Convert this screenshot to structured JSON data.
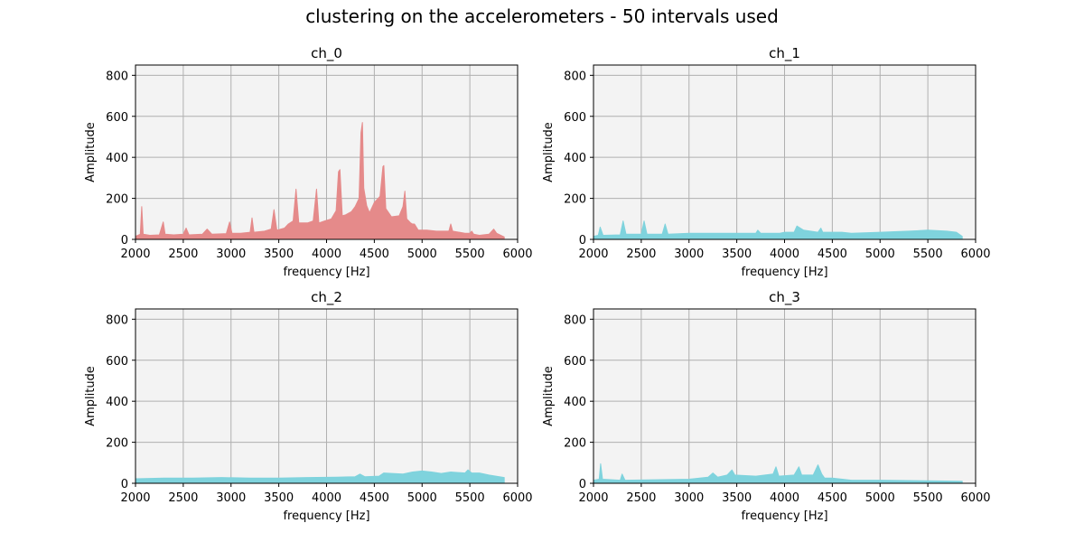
{
  "figure": {
    "suptitle": "clustering on the accelerometers - 50 intervals used"
  },
  "chart_data": [
    {
      "type": "area",
      "title": "ch_0",
      "xlabel": "frequency [Hz]",
      "ylabel": "Amplitude",
      "xlim": [
        2000,
        6000
      ],
      "ylim": [
        0,
        850
      ],
      "xticks": [
        2000,
        2500,
        3000,
        3500,
        4000,
        4500,
        5000,
        5500,
        6000
      ],
      "yticks": [
        0,
        200,
        400,
        600,
        800
      ],
      "grid": true,
      "color": "#e58a8a",
      "series": [
        {
          "x": [
            2000,
            2050,
            2065,
            2080,
            2150,
            2250,
            2290,
            2310,
            2400,
            2500,
            2530,
            2560,
            2700,
            2750,
            2800,
            2950,
            2985,
            3010,
            3100,
            3200,
            3220,
            3240,
            3350,
            3420,
            3450,
            3480,
            3560,
            3600,
            3650,
            3680,
            3710,
            3800,
            3860,
            3895,
            3920,
            3980,
            4050,
            4100,
            4125,
            4140,
            4165,
            4200,
            4260,
            4300,
            4340,
            4360,
            4375,
            4390,
            4420,
            4450,
            4500,
            4560,
            4590,
            4600,
            4620,
            4680,
            4760,
            4800,
            4820,
            4840,
            4880,
            4900,
            4920,
            4960,
            5050,
            5150,
            5200,
            5280,
            5300,
            5320,
            5450,
            5500,
            5520,
            5540,
            5600,
            5700,
            5750,
            5780,
            5860
          ],
          "y": [
            15,
            25,
            160,
            25,
            20,
            22,
            85,
            25,
            22,
            25,
            55,
            22,
            25,
            50,
            25,
            28,
            85,
            30,
            30,
            35,
            105,
            35,
            40,
            50,
            145,
            45,
            55,
            75,
            90,
            245,
            80,
            80,
            90,
            245,
            80,
            90,
            100,
            140,
            330,
            340,
            115,
            120,
            135,
            160,
            200,
            520,
            570,
            250,
            165,
            130,
            180,
            210,
            355,
            360,
            150,
            110,
            115,
            160,
            235,
            100,
            80,
            75,
            75,
            45,
            45,
            40,
            40,
            40,
            75,
            40,
            30,
            30,
            40,
            25,
            20,
            25,
            50,
            30,
            12
          ]
        }
      ]
    },
    {
      "type": "area",
      "title": "ch_1",
      "xlabel": "frequency [Hz]",
      "ylabel": "Amplitude",
      "xlim": [
        2000,
        6000
      ],
      "ylim": [
        0,
        850
      ],
      "xticks": [
        2000,
        2500,
        3000,
        3500,
        4000,
        4500,
        5000,
        5500,
        6000
      ],
      "yticks": [
        0,
        200,
        400,
        600,
        800
      ],
      "grid": true,
      "color": "#7fd3dd",
      "series": [
        {
          "x": [
            2000,
            2050,
            2070,
            2100,
            2280,
            2310,
            2340,
            2500,
            2530,
            2560,
            2720,
            2750,
            2780,
            3000,
            3500,
            3700,
            3720,
            3750,
            3950,
            4000,
            4100,
            4130,
            4200,
            4350,
            4380,
            4400,
            4600,
            4700,
            5000,
            5300,
            5500,
            5700,
            5800,
            5860
          ],
          "y": [
            15,
            20,
            60,
            20,
            22,
            90,
            25,
            25,
            90,
            25,
            25,
            75,
            25,
            30,
            30,
            30,
            45,
            30,
            30,
            35,
            35,
            65,
            45,
            35,
            55,
            35,
            35,
            30,
            35,
            40,
            45,
            40,
            35,
            15
          ]
        }
      ]
    },
    {
      "type": "area",
      "title": "ch_2",
      "xlabel": "frequency [Hz]",
      "ylabel": "Amplitude",
      "xlim": [
        2000,
        6000
      ],
      "ylim": [
        0,
        850
      ],
      "xticks": [
        2000,
        2500,
        3000,
        3500,
        4000,
        4500,
        5000,
        5500,
        6000
      ],
      "yticks": [
        0,
        200,
        400,
        600,
        800
      ],
      "grid": true,
      "color": "#7fd3dd",
      "series": [
        {
          "x": [
            2000,
            2300,
            2600,
            2900,
            3200,
            3500,
            3800,
            4100,
            4300,
            4350,
            4400,
            4550,
            4600,
            4800,
            4900,
            5000,
            5100,
            5200,
            5300,
            5450,
            5480,
            5520,
            5600,
            5700,
            5860
          ],
          "y": [
            22,
            25,
            25,
            28,
            25,
            25,
            28,
            30,
            32,
            45,
            32,
            35,
            50,
            45,
            55,
            60,
            55,
            48,
            55,
            50,
            65,
            50,
            50,
            40,
            28
          ]
        }
      ]
    },
    {
      "type": "area",
      "title": "ch_3",
      "xlabel": "frequency [Hz]",
      "ylabel": "Amplitude",
      "xlim": [
        2000,
        6000
      ],
      "ylim": [
        0,
        850
      ],
      "xticks": [
        2000,
        2500,
        3000,
        3500,
        4000,
        4500,
        5000,
        5500,
        6000
      ],
      "yticks": [
        0,
        200,
        400,
        600,
        800
      ],
      "grid": true,
      "color": "#7fd3dd",
      "series": [
        {
          "x": [
            2000,
            2060,
            2075,
            2095,
            2280,
            2300,
            2330,
            3000,
            3200,
            3250,
            3300,
            3400,
            3450,
            3480,
            3700,
            3880,
            3910,
            3940,
            4100,
            4150,
            4180,
            4300,
            4350,
            4390,
            4420,
            4500,
            4700,
            5000,
            5500,
            5860
          ],
          "y": [
            15,
            20,
            95,
            20,
            15,
            45,
            15,
            20,
            30,
            50,
            30,
            40,
            65,
            40,
            35,
            45,
            80,
            35,
            40,
            80,
            40,
            40,
            90,
            45,
            25,
            25,
            15,
            15,
            12,
            10
          ]
        }
      ]
    }
  ]
}
